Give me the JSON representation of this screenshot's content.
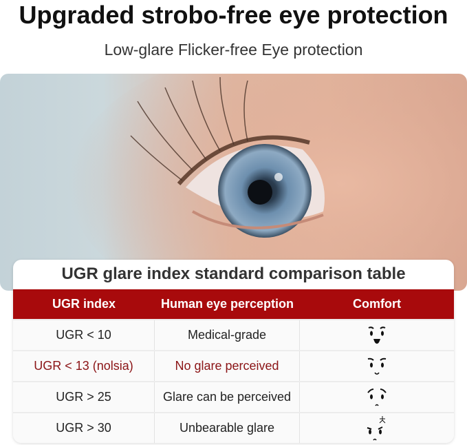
{
  "header": {
    "title": "Upgraded strobo-free eye protection",
    "subtitle": "Low-glare Flicker-free Eye protection"
  },
  "table": {
    "title": "UGR glare index standard comparison table",
    "accent_color": "#a80a0c",
    "columns": [
      "UGR index",
      "Human eye perception",
      "Comfort"
    ],
    "rows": [
      {
        "index": "UGR < 10",
        "perception": "Medical-grade",
        "comfort_icon": "happy-face-icon",
        "highlight": false
      },
      {
        "index": "UGR < 13 (nolsia)",
        "perception": "No glare perceived",
        "comfort_icon": "smile-face-icon",
        "highlight": true
      },
      {
        "index": "UGR > 25",
        "perception": "Glare can be perceived",
        "comfort_icon": "worried-face-icon",
        "highlight": false
      },
      {
        "index": "UGR > 30",
        "perception": "Unbearable glare",
        "comfort_icon": "angry-face-icon",
        "highlight": false
      }
    ]
  }
}
